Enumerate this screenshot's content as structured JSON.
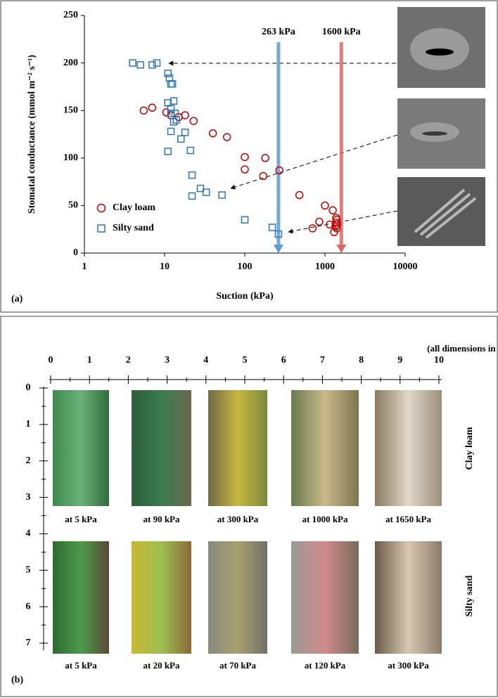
{
  "chart_data": {
    "type": "scatter",
    "xlabel": "Suction (kPa)",
    "ylabel": "Stomatal conductance (mmol m⁻² s⁻¹)",
    "xscale": "log",
    "xlim": [
      1,
      10000
    ],
    "xticks": [
      1,
      10,
      100,
      1000,
      10000
    ],
    "ylim": [
      0,
      250
    ],
    "yticks": [
      0,
      50,
      100,
      150,
      200,
      250
    ],
    "legend": "lower left",
    "series": [
      {
        "name": "Clay loam",
        "marker": "circle",
        "color": "#c00000",
        "x": [
          5.5,
          7,
          10.5,
          12,
          15,
          18,
          23,
          40,
          60,
          100,
          100,
          170,
          180,
          270,
          480,
          700,
          850,
          1000,
          1150,
          1250,
          1300,
          1350,
          1380,
          1400,
          1420,
          1400,
          1380
        ],
        "values": [
          150,
          153,
          148,
          145,
          143,
          145,
          139,
          126,
          122,
          101,
          88,
          81,
          100,
          87,
          61,
          26,
          33,
          50,
          30,
          45,
          22,
          28,
          32,
          35,
          30,
          26,
          37
        ]
      },
      {
        "name": "Silty sand",
        "marker": "square",
        "color": "#2e75b6",
        "x": [
          4,
          5,
          7,
          8,
          11,
          11.5,
          12,
          12.5,
          11,
          12,
          13,
          13.5,
          12,
          14,
          13,
          12,
          16,
          18,
          11,
          21,
          22,
          22,
          28,
          33,
          52,
          100,
          220,
          263
        ],
        "values": [
          200,
          198,
          198,
          200,
          189,
          184,
          178,
          178,
          158,
          152,
          160,
          147,
          147,
          140,
          138,
          128,
          120,
          127,
          107,
          108,
          82,
          60,
          68,
          64,
          61,
          35,
          27,
          20
        ]
      }
    ],
    "annotations": [
      {
        "label": "263 kPa",
        "x": 263,
        "color": "#5b9bd5"
      },
      {
        "label": "1600 kPa",
        "x": 1600,
        "color": "#e06666"
      }
    ]
  },
  "panel_a_label": "(a)",
  "panel_b": {
    "label": "(b)",
    "note": "(all dimensions in cm)",
    "ruler_horizontal": [
      0,
      1,
      2,
      3,
      4,
      5,
      6,
      7,
      8,
      9,
      10
    ],
    "ruler_vertical": [
      0,
      1,
      2,
      3,
      4,
      5,
      6,
      7
    ],
    "rows": [
      {
        "name": "Clay loam",
        "captions": [
          "at 5 kPa",
          "at 90 kPa",
          "at 300 kPa",
          "at 1000 kPa",
          "at 1650 kPa"
        ]
      },
      {
        "name": "Silty sand",
        "captions": [
          "at 5 kPa",
          "at 20 kPa",
          "at 70 kPa",
          "at 120 kPa",
          "at 300 kPa"
        ]
      }
    ]
  }
}
